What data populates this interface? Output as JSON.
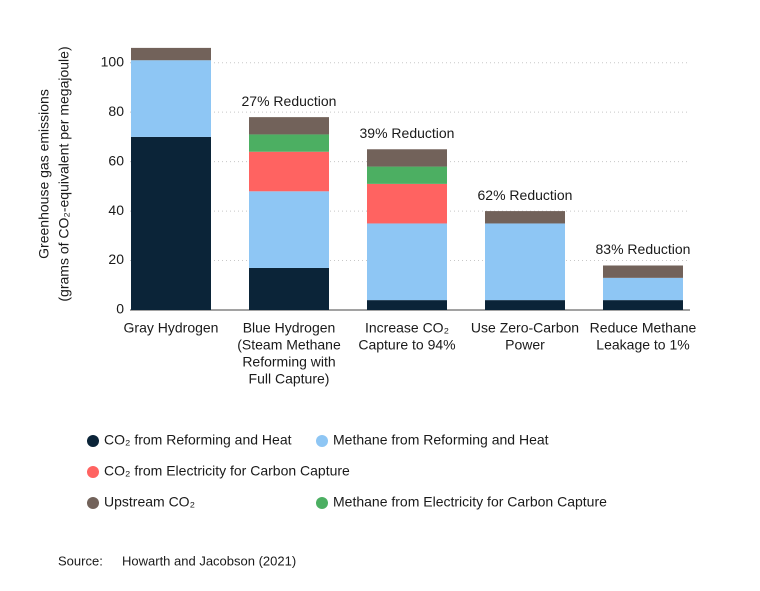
{
  "chart_data": {
    "type": "stacked-bar",
    "y_label": [
      "Greenhouse gas emissions",
      "(grams of CO₂-equivalent per megajoule)"
    ],
    "categories": [
      [
        "Gray Hydrogen"
      ],
      [
        "Blue Hydrogen",
        "(Steam Methane",
        "Reforming with",
        "Full Capture)"
      ],
      [
        "Increase CO₂",
        "Capture to 94%"
      ],
      [
        "Use Zero-Carbon",
        "Power"
      ],
      [
        "Reduce Methane",
        "Leakage to 1%"
      ]
    ],
    "annotations": [
      null,
      "27% Reduction",
      "39% Reduction",
      "62% Reduction",
      "83% Reduction"
    ],
    "series": [
      {
        "name": "CO₂ from Reforming and Heat",
        "color": "#0b2438",
        "values": [
          70,
          17,
          4,
          4,
          4
        ]
      },
      {
        "name": "Methane from Reforming and Heat",
        "color": "#8ec6f4",
        "values": [
          31,
          31,
          31,
          31,
          9
        ]
      },
      {
        "name": "CO₂ from Electricity for Carbon Capture",
        "color": "#ff6361",
        "values": [
          0,
          16,
          16,
          0,
          0
        ]
      },
      {
        "name": "Methane from Electricity for Carbon Capture",
        "color": "#4caf62",
        "values": [
          0,
          7,
          7,
          0,
          0
        ]
      },
      {
        "name": "Upstream CO₂",
        "color": "#72625a",
        "values": [
          5,
          7,
          7,
          5,
          5
        ]
      }
    ],
    "ylim": [
      0,
      110
    ],
    "yticks": [
      0,
      20,
      40,
      60,
      80,
      100
    ],
    "grid": true,
    "source": [
      "Source:",
      "Howarth and Jacobson (2021)"
    ]
  }
}
